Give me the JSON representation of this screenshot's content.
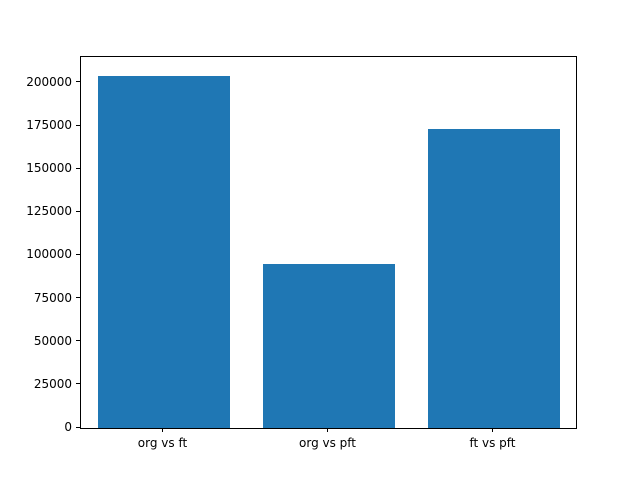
{
  "chart_data": {
    "type": "bar",
    "categories": [
      "org vs ft",
      "org vs pft",
      "ft vs pft"
    ],
    "values": [
      204000,
      95000,
      173000
    ],
    "title": "",
    "xlabel": "",
    "ylabel": "",
    "ylim": [
      0,
      215000
    ],
    "yticks": [
      0,
      25000,
      50000,
      75000,
      100000,
      125000,
      150000,
      175000,
      200000
    ],
    "bar_color": "#1f77b4",
    "bar_width_fraction": 0.8,
    "grid": false,
    "legend_position": "none",
    "background_color": "#ffffff",
    "axis_color": "#000000"
  }
}
